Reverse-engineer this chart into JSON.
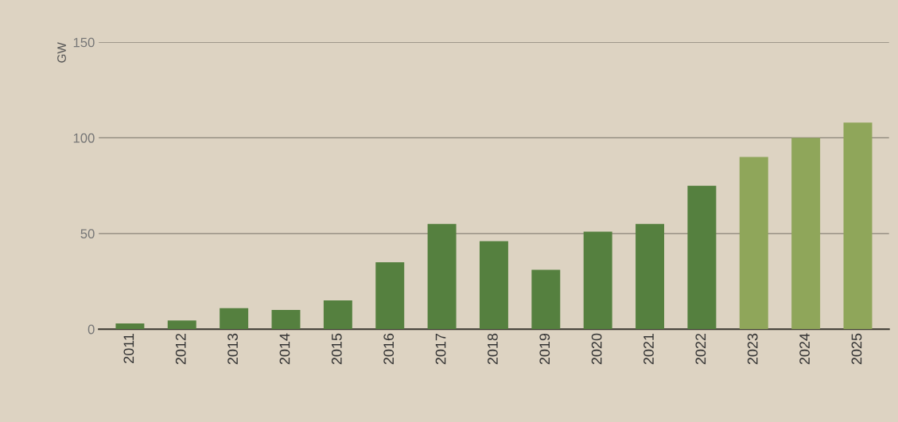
{
  "chart_data": {
    "type": "bar",
    "ylabel": "GW",
    "categories": [
      "2011",
      "2012",
      "2013",
      "2014",
      "2015",
      "2016",
      "2017",
      "2018",
      "2019",
      "2020",
      "2021",
      "2022",
      "2023",
      "2024",
      "2025"
    ],
    "values": [
      3,
      4.5,
      11,
      10,
      15,
      35,
      55,
      46,
      31,
      51,
      55,
      75,
      90,
      100,
      108
    ],
    "colors": [
      "#55803f",
      "#55803f",
      "#55803f",
      "#55803f",
      "#55803f",
      "#55803f",
      "#55803f",
      "#55803f",
      "#55803f",
      "#55803f",
      "#55803f",
      "#55803f",
      "#8fa65a",
      "#8fa65a",
      "#8fa65a"
    ],
    "ylim": [
      0,
      150
    ],
    "yticks": [
      0,
      50,
      100,
      150
    ],
    "grid": "y"
  }
}
